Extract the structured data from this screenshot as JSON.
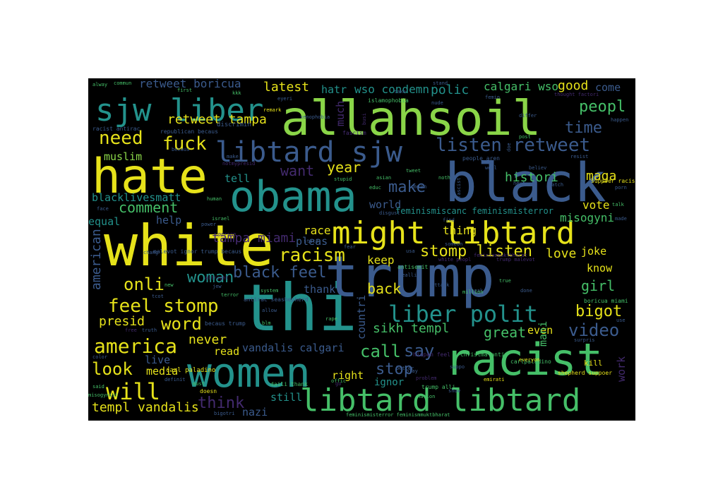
{
  "palette": {
    "yellow": "#e6e21a",
    "green": "#45bf68",
    "teal": "#23928c",
    "blue": "#3b5b8d",
    "purple": "#432a6e",
    "lime": "#8ad548"
  },
  "words": [
    {
      "text": "thi",
      "color": "#23928c"
    },
    {
      "text": "white",
      "color": "#e6e21a"
    },
    {
      "text": "trump",
      "color": "#3b5b8d"
    },
    {
      "text": "black",
      "color": "#3b5b8d"
    },
    {
      "text": "allahsoil",
      "color": "#8ad548"
    },
    {
      "text": "hate",
      "color": "#e6e21a"
    },
    {
      "text": "obama",
      "color": "#23928c"
    },
    {
      "text": "women",
      "color": "#23928c"
    },
    {
      "text": "racist",
      "color": "#45bf68"
    },
    {
      "text": "libtard libtard",
      "color": "#45bf68"
    },
    {
      "text": "might libtard",
      "color": "#e6e21a"
    },
    {
      "text": "libtard sjw",
      "color": "#3b5b8d"
    },
    {
      "text": "sjw liber",
      "color": "#23928c"
    },
    {
      "text": "liber polit",
      "color": "#23928c"
    },
    {
      "text": "listen retweet",
      "color": "#3b5b8d"
    },
    {
      "text": "racism",
      "color": "#e6e21a"
    },
    {
      "text": "america",
      "color": "#e6e21a"
    },
    {
      "text": "will",
      "color": "#e6e21a"
    },
    {
      "text": "feel stomp",
      "color": "#e6e21a"
    },
    {
      "text": "stomp listen",
      "color": "#e6e21a"
    },
    {
      "text": "look",
      "color": "#e6e21a"
    },
    {
      "text": "onli",
      "color": "#e6e21a"
    },
    {
      "text": "word",
      "color": "#e6e21a"
    },
    {
      "text": "need",
      "color": "#e6e21a"
    },
    {
      "text": "fuck",
      "color": "#e6e21a"
    },
    {
      "text": "black feel",
      "color": "#3b5b8d"
    },
    {
      "text": "video",
      "color": "#3b5b8d"
    },
    {
      "text": "woman",
      "color": "#23928c"
    },
    {
      "text": "bigot",
      "color": "#e6e21a"
    },
    {
      "text": "peopl",
      "color": "#45bf68"
    },
    {
      "text": "call",
      "color": "#45bf68"
    },
    {
      "text": "say",
      "color": "#3b5b8d"
    },
    {
      "text": "stop",
      "color": "#3b5b8d"
    },
    {
      "text": "make",
      "color": "#3b5b8d"
    },
    {
      "text": "want",
      "color": "#432a6e"
    },
    {
      "text": "time",
      "color": "#3b5b8d"
    },
    {
      "text": "think",
      "color": "#432a6e"
    },
    {
      "text": "year",
      "color": "#e6e21a"
    },
    {
      "text": "comment",
      "color": "#45bf68"
    },
    {
      "text": "girl",
      "color": "#45bf68"
    },
    {
      "text": "great",
      "color": "#45bf68"
    },
    {
      "text": "retweet tampa",
      "color": "#e6e21a"
    },
    {
      "text": "polic",
      "color": "#23928c"
    },
    {
      "text": "good",
      "color": "#e6e21a"
    },
    {
      "text": "latest",
      "color": "#e6e21a"
    },
    {
      "text": "never",
      "color": "#e6e21a"
    },
    {
      "text": "presid",
      "color": "#e6e21a"
    },
    {
      "text": "sikh templ",
      "color": "#45bf68"
    },
    {
      "text": "templ vandalis",
      "color": "#e6e21a"
    },
    {
      "text": "tampa miami",
      "color": "#432a6e"
    },
    {
      "text": "love",
      "color": "#e6e21a"
    },
    {
      "text": "histori",
      "color": "#45bf68"
    },
    {
      "text": "maga",
      "color": "#e6e21a"
    },
    {
      "text": "vote",
      "color": "#e6e21a"
    },
    {
      "text": "misogyni",
      "color": "#45bf68"
    },
    {
      "text": "back",
      "color": "#e6e21a"
    },
    {
      "text": "wso condemn",
      "color": "#23928c"
    },
    {
      "text": "calgari wso",
      "color": "#45bf68"
    },
    {
      "text": "retweet boricua",
      "color": "#3b5b8d"
    },
    {
      "text": "hatr",
      "color": "#23928c"
    },
    {
      "text": "come",
      "color": "#3b5b8d"
    },
    {
      "text": "muslim",
      "color": "#8ad548"
    },
    {
      "text": "tell",
      "color": "#23928c"
    },
    {
      "text": "blacklivesmatt",
      "color": "#23928c"
    },
    {
      "text": "equal",
      "color": "#23928c"
    },
    {
      "text": "help",
      "color": "#3b5b8d"
    },
    {
      "text": "race",
      "color": "#e6e21a"
    },
    {
      "text": "keep",
      "color": "#e6e21a"
    },
    {
      "text": "thing",
      "color": "#e6e21a"
    },
    {
      "text": "joke",
      "color": "#e6e21a"
    },
    {
      "text": "know",
      "color": "#e6e21a"
    },
    {
      "text": "world",
      "color": "#3b5b8d"
    },
    {
      "text": "pleas",
      "color": "#3b5b8d"
    },
    {
      "text": "thank",
      "color": "#3b5b8d"
    },
    {
      "text": "read",
      "color": "#e6e21a"
    },
    {
      "text": "vandalis calgari",
      "color": "#3b5b8d"
    },
    {
      "text": "live",
      "color": "#3b5b8d"
    },
    {
      "text": "media",
      "color": "#e6e21a"
    },
    {
      "text": "right",
      "color": "#e6e21a"
    },
    {
      "text": "ignor",
      "color": "#23928c"
    },
    {
      "text": "still",
      "color": "#23928c"
    },
    {
      "text": "nazi",
      "color": "#3b5b8d"
    },
    {
      "text": "even",
      "color": "#e6e21a"
    },
    {
      "text": "feminismiscanc feminismisterror",
      "color": "#23928c"
    },
    {
      "text": "american",
      "color": "#3b5b8d"
    },
    {
      "text": "countri",
      "color": "#3b5b8d"
    },
    {
      "text": "much",
      "color": "#432a6e"
    },
    {
      "text": "mani",
      "color": "#45bf68"
    },
    {
      "text": "work",
      "color": "#432a6e"
    },
    {
      "text": "kill",
      "color": "#e6e21a"
    },
    {
      "text": "racist antirac",
      "color": "#3b5b8d"
    },
    {
      "text": "republican becaus",
      "color": "#3b5b8d"
    },
    {
      "text": "discrimin",
      "color": "#3b5b8d"
    },
    {
      "text": "islamophobia",
      "color": "#45bf68"
    },
    {
      "text": "carl paladino",
      "color": "#e6e21a"
    },
    {
      "text": "shepherd suppoer",
      "color": "#e6e21a"
    },
    {
      "text": "feminismisterror feminismmuktbharat",
      "color": "#45bf68"
    },
    {
      "text": "malevot ignor trump becaus",
      "color": "#3b5b8d"
    },
    {
      "text": "suppoer racist",
      "color": "#e6e21a"
    },
    {
      "text": "antirac seashepherd",
      "color": "#3b5b8d"
    },
    {
      "text": "boricua miami",
      "color": "#45bf68"
    },
    {
      "text": "christma anti",
      "color": "#45bf68"
    },
    {
      "text": "hispan feel",
      "color": "#432a6e"
    },
    {
      "text": "trump alli",
      "color": "#45bf68"
    },
    {
      "text": "daili thank",
      "color": "#45bf68"
    },
    {
      "text": "becaus trump",
      "color": "#3b5b8d"
    },
    {
      "text": "people aren",
      "color": "#3b5b8d"
    },
    {
      "text": "carlpaladino",
      "color": "#45bf68"
    },
    {
      "text": "alway",
      "color": "#45bf68"
    },
    {
      "text": "commun",
      "color": "#45bf68"
    },
    {
      "text": "first",
      "color": "#45bf68"
    },
    {
      "text": "kkk",
      "color": "#45bf68"
    },
    {
      "text": "eyeri",
      "color": "#3b5b8d"
    },
    {
      "text": "remark",
      "color": "#e6e21a"
    },
    {
      "text": "take",
      "color": "#3b5b8d"
    },
    {
      "text": "nude",
      "color": "#3b5b8d"
    },
    {
      "text": "femin",
      "color": "#3b5b8d"
    },
    {
      "text": "stand",
      "color": "#3b5b8d"
    },
    {
      "text": "differ",
      "color": "#3b5b8d"
    },
    {
      "text": "thought factori",
      "color": "#432a6e"
    },
    {
      "text": "happen",
      "color": "#3b5b8d"
    },
    {
      "text": "xenophobia",
      "color": "#3b5b8d"
    },
    {
      "text": "fascism",
      "color": "#432a6e"
    },
    {
      "text": "post",
      "color": "#45bf68"
    },
    {
      "text": "resist",
      "color": "#3b5b8d"
    },
    {
      "text": "becaus",
      "color": "#3b5b8d"
    },
    {
      "text": "notmypresid",
      "color": "#432a6e"
    },
    {
      "text": "stupid",
      "color": "#45bf68"
    },
    {
      "text": "asian",
      "color": "#45bf68"
    },
    {
      "text": "educ",
      "color": "#45bf68"
    },
    {
      "text": "tweet",
      "color": "#45bf68"
    },
    {
      "text": "well",
      "color": "#3b5b8d"
    },
    {
      "text": "believ",
      "color": "#3b5b8d"
    },
    {
      "text": "watch",
      "color": "#3b5b8d"
    },
    {
      "text": "next",
      "color": "#3b5b8d"
    },
    {
      "text": "porn",
      "color": "#3b5b8d"
    },
    {
      "text": "talk",
      "color": "#45bf68"
    },
    {
      "text": "face",
      "color": "#3b5b8d"
    },
    {
      "text": "human",
      "color": "#45bf68"
    },
    {
      "text": "israel",
      "color": "#45bf68"
    },
    {
      "text": "power",
      "color": "#3b5b8d"
    },
    {
      "text": "disgust",
      "color": "#3b5b8d"
    },
    {
      "text": "find",
      "color": "#3b5b8d"
    },
    {
      "text": "made",
      "color": "#3b5b8d"
    },
    {
      "text": "person",
      "color": "#432a6e"
    },
    {
      "text": "state",
      "color": "#3b5b8d"
    },
    {
      "text": "fear",
      "color": "#3b5b8d"
    },
    {
      "text": "chang",
      "color": "#3b5b8d"
    },
    {
      "text": "antisemit",
      "color": "#45bf68"
    },
    {
      "text": "realli",
      "color": "#3b5b8d"
    },
    {
      "text": "new",
      "color": "#45bf68"
    },
    {
      "text": "jew",
      "color": "#3b5b8d"
    },
    {
      "text": "altright",
      "color": "#432a6e"
    },
    {
      "text": "system",
      "color": "#45bf68"
    },
    {
      "text": "terror",
      "color": "#45bf68"
    },
    {
      "text": "attack",
      "color": "#3b5b8d"
    },
    {
      "text": "speak",
      "color": "#3b5b8d"
    },
    {
      "text": "true",
      "color": "#45bf68"
    },
    {
      "text": "million",
      "color": "#45bf68"
    },
    {
      "text": "done",
      "color": "#3b5b8d"
    },
    {
      "text": "use",
      "color": "#3b5b8d"
    },
    {
      "text": "tcot",
      "color": "#3b5b8d"
    },
    {
      "text": "allow",
      "color": "#3b5b8d"
    },
    {
      "text": "free",
      "color": "#432a6e"
    },
    {
      "text": "truth",
      "color": "#3b5b8d"
    },
    {
      "text": "rape",
      "color": "#45bf68"
    },
    {
      "text": "blm",
      "color": "#45bf68"
    },
    {
      "text": "surpris",
      "color": "#3b5b8d"
    },
    {
      "text": "emirati",
      "color": "#e6e21a"
    },
    {
      "text": "color",
      "color": "#3b5b8d"
    },
    {
      "text": "said",
      "color": "#45bf68"
    },
    {
      "text": "misogynist",
      "color": "#45bf68"
    },
    {
      "text": "definit",
      "color": "#3b5b8d"
    },
    {
      "text": "must",
      "color": "#45bf68"
    },
    {
      "text": "doesn",
      "color": "#e6e21a"
    },
    {
      "text": "bigotri",
      "color": "#3b5b8d"
    },
    {
      "text": "offic",
      "color": "#45bf68"
    },
    {
      "text": "play",
      "color": "#3b5b8d"
    },
    {
      "text": "problem",
      "color": "#432a6e"
    },
    {
      "text": "nation",
      "color": "#45bf68"
    },
    {
      "text": "show",
      "color": "#3b5b8d"
    },
    {
      "text": "everyon",
      "color": "#e6e21a"
    },
    {
      "text": "better",
      "color": "#3b5b8d"
    },
    {
      "text": "suppo",
      "color": "#3b5b8d"
    },
    {
      "text": "mean",
      "color": "#3b5b8d"
    },
    {
      "text": "noth",
      "color": "#45bf68"
    },
    {
      "text": "someon",
      "color": "#3b5b8d"
    },
    {
      "text": "usa",
      "color": "#3b5b8d"
    },
    {
      "text": "busi",
      "color": "#432a6e"
    },
    {
      "text": "doe",
      "color": "#3b5b8d"
    },
    {
      "text": "fascist",
      "color": "#3b5b8d"
    },
    {
      "text": "make",
      "color": "#3b5b8d"
    },
    {
      "text": "go",
      "color": "#432a6e"
    },
    {
      "text": "trump malevot",
      "color": "#432a6e"
    },
    {
      "text": "white peopl",
      "color": "#432a6e"
    },
    {
      "text": "feminismmuktbharat",
      "color": "#432a6e"
    }
  ]
}
